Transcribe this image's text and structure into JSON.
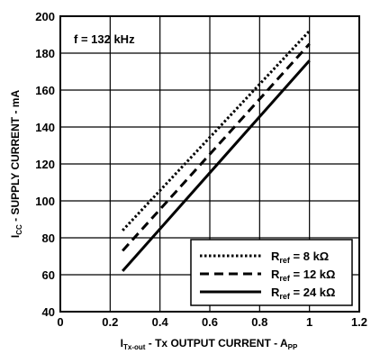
{
  "chart_data": {
    "type": "line",
    "title": "",
    "annotation": "f = 132 kHz",
    "xlabel": {
      "main": "I",
      "sub": "Tx-out",
      "text": " - Tx OUTPUT CURRENT  - A",
      "unit_sub": "PP"
    },
    "ylabel": {
      "main": "I",
      "sub": "CC",
      "text": " - SUPPLY CURRENT - mA"
    },
    "xlim": [
      0,
      1.2
    ],
    "ylim": [
      40,
      200
    ],
    "xticks": [
      "0",
      "0.2",
      "0.4",
      "0.6",
      "0.8",
      "1",
      "1.2"
    ],
    "yticks": [
      "40",
      "60",
      "80",
      "100",
      "120",
      "140",
      "160",
      "180",
      "200"
    ],
    "grid": true,
    "legend_position": "bottom-right",
    "series": [
      {
        "name": "R_ref = 8 kΩ",
        "legend": {
          "main": "R",
          "sub": "ref",
          "rest": " = 8 kΩ"
        },
        "style": "dotted",
        "x": [
          0.25,
          1.0
        ],
        "y": [
          84,
          192
        ]
      },
      {
        "name": "R_ref = 12 kΩ",
        "legend": {
          "main": "R",
          "sub": "ref",
          "rest": " = 12 kΩ"
        },
        "style": "dashed",
        "x": [
          0.25,
          1.0
        ],
        "y": [
          73,
          185
        ]
      },
      {
        "name": "R_ref = 24 kΩ",
        "legend": {
          "main": "R",
          "sub": "ref",
          "rest": " = 24 kΩ"
        },
        "style": "solid",
        "x": [
          0.25,
          1.0
        ],
        "y": [
          62,
          176
        ]
      }
    ]
  }
}
